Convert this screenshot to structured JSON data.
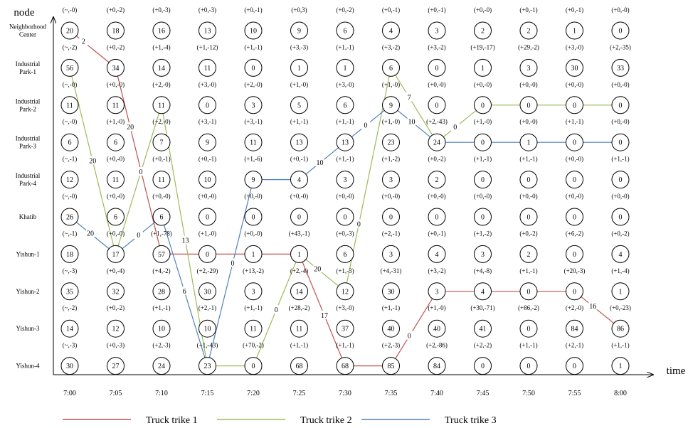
{
  "axis": {
    "y_label": "node",
    "x_label": "time"
  },
  "times": [
    "7:00",
    "7:05",
    "7:10",
    "7:15",
    "7:20",
    "7:25",
    "7:30",
    "7:35",
    "7:40",
    "7:45",
    "7:50",
    "7:55",
    "8:00"
  ],
  "nodes": [
    {
      "label_lines": [
        "Neighborhood",
        "Center"
      ],
      "values": [
        "20",
        "18",
        "16",
        "13",
        "10",
        "9",
        "6",
        "4",
        "3",
        "2",
        "2",
        "1",
        "0"
      ],
      "changes": [
        "(~,-0)",
        "(+0,-2)",
        "(+0,-3)",
        "(+0,-3)",
        "(+0,-1)",
        "(+0,3)",
        "(+0,-2)",
        "(+0,-1)",
        "(+0,-1)",
        "(+0,-0)",
        "(+0,-1)",
        "(+0,-1)",
        "(+0,-0)"
      ]
    },
    {
      "label_lines": [
        "Industrial",
        "Park-1"
      ],
      "values": [
        "56",
        "34",
        "14",
        "11",
        "0",
        "1",
        "1",
        "6",
        "0",
        "1",
        "3",
        "30",
        "33"
      ],
      "changes": [
        "(~,-2)",
        "(+0,-2)",
        "(+1,-4)",
        "(+1,-12)",
        "(+1,-1)",
        "(+3,-3)",
        "(+1,-1)",
        "(+3,-2)",
        "(+3,-2)",
        "(+19,-17)",
        "(+29,-2)",
        "(+3,-0)",
        "(+2,-35)"
      ]
    },
    {
      "label_lines": [
        "Industrial",
        "Park-2"
      ],
      "values": [
        "11",
        "11",
        "11",
        "0",
        "3",
        "5",
        "6",
        "9",
        "0",
        "0",
        "0",
        "0",
        "0"
      ],
      "changes": [
        "(~,-0)",
        "(+0,-0)",
        "(+2,-0)",
        "(+3,-0)",
        "(+2,-0)",
        "(+1,-0)",
        "(+3,-0)",
        "(+1,-0)",
        "(+0,-0)",
        "(+0,-0)",
        "(+0,-0)",
        "(+0,-0)",
        "(+0,-0)"
      ]
    },
    {
      "label_lines": [
        "Industrial",
        "Park-3"
      ],
      "values": [
        "6",
        "6",
        "7",
        "9",
        "11",
        "13",
        "13",
        "23",
        "24",
        "0",
        "1",
        "0",
        "0"
      ],
      "changes": [
        "(~,-0)",
        "(+1,-0)",
        "(+2,-0)",
        "(+3,-1)",
        "(+3,-1)",
        "(+1,-1)",
        "(+1,-1)",
        "(+1,-0)",
        "(+2,-43)",
        "(+1,-0)",
        "(+0,-0)",
        "(+1,-1)",
        "(+0,-0)"
      ]
    },
    {
      "label_lines": [
        "Industrial",
        "Park-4"
      ],
      "values": [
        "12",
        "11",
        "11",
        "10",
        "9",
        "4",
        "3",
        "3",
        "2",
        "0",
        "0",
        "0",
        "0"
      ],
      "changes": [
        "(~,-1)",
        "(+0,-0)",
        "(+0,-1)",
        "(+0,-1)",
        "(+1,-6)",
        "(+0,-1)",
        "(+1,-1)",
        "(+1,-2)",
        "(+0,-2)",
        "(+1,-1)",
        "(+1,-1)",
        "(+0,-0)",
        "(+1,-1)"
      ]
    },
    {
      "label_lines": [
        "Khatib"
      ],
      "values": [
        "26",
        "6",
        "6",
        "0",
        "0",
        "0",
        "0",
        "0",
        "0",
        "0",
        "0",
        "0",
        "0"
      ],
      "changes": [
        "(~,-0)",
        "(+0,-0)",
        "(+0,-0)",
        "(+0,-0)",
        "(+0,-0)",
        "(+0,-0)",
        "(+0,-0)",
        "(+0,-0)",
        "(+0,-0)",
        "(+0,-0)",
        "(+0,-0)",
        "(+0,-0)",
        "(+0,-0)"
      ]
    },
    {
      "label_lines": [
        "Yishun-1"
      ],
      "values": [
        "18",
        "17",
        "57",
        "0",
        "1",
        "1",
        "6",
        "3",
        "4",
        "3",
        "2",
        "0",
        "4"
      ],
      "changes": [
        "(~,-1)",
        "(+0,-0)",
        "(+1,-78)",
        "(+1,-0)",
        "(+0,-0)",
        "(+43,-1)",
        "(+0,-3)",
        "(+2,-1)",
        "(+0,-1)",
        "(+1,-2)",
        "(+0,-2)",
        "(+6,-2)",
        "(+0,-2)"
      ]
    },
    {
      "label_lines": [
        "Yishun-2"
      ],
      "values": [
        "35",
        "32",
        "28",
        "30",
        "3",
        "14",
        "12",
        "30",
        "3",
        "4",
        "0",
        "0",
        "1"
      ],
      "changes": [
        "(~,-3)",
        "(+0,-4)",
        "(+4,-2)",
        "(+2,-29)",
        "(+13,-2)",
        "(+2,-4)",
        "(+1,-3)",
        "(+4,-31)",
        "(+3,-2)",
        "(+4,-8)",
        "(+1,-1)",
        "(+20,-3)",
        "(+1,-4)"
      ]
    },
    {
      "label_lines": [
        "Yishun-3"
      ],
      "values": [
        "14",
        "12",
        "10",
        "10",
        "11",
        "11",
        "37",
        "40",
        "40",
        "41",
        "0",
        "84",
        "86"
      ],
      "changes": [
        "(~,-2)",
        "(+0,-2)",
        "(+1,-1)",
        "(+2,-1)",
        "(+1,-1)",
        "(+28,-2)",
        "(+3,-0)",
        "(+1,-1)",
        "(+1,-0)",
        "(+30,-71)",
        "(+86,-2)",
        "(+2,-0)",
        "(+0,-23)"
      ]
    },
    {
      "label_lines": [
        "Yishun-4"
      ],
      "values": [
        "30",
        "27",
        "24",
        "23",
        "0",
        "68",
        "68",
        "85",
        "84",
        "0",
        "0",
        "0",
        "1"
      ],
      "changes": [
        "(~,-3)",
        "(+0,-3)",
        "(+2,-3)",
        "(+1,-43)",
        "(+70,-2)",
        "(+1,-1)",
        "(+1,-1)",
        "(+2,-3)",
        "(+2,-86)",
        "(+2,-2)",
        "(+1,-1)",
        "(+2,-1)",
        "(+1,-1)"
      ]
    }
  ],
  "routes": [
    {
      "name": "Truck trike 1",
      "color": "#c0504d",
      "points": [
        [
          0,
          0
        ],
        [
          1,
          1
        ],
        [
          2,
          6
        ],
        [
          3,
          6
        ],
        [
          4,
          6
        ],
        [
          5,
          6
        ],
        [
          6,
          9
        ],
        [
          7,
          9
        ],
        [
          8,
          7
        ],
        [
          9,
          7
        ],
        [
          10,
          7
        ],
        [
          11,
          7
        ],
        [
          12,
          8
        ]
      ],
      "labels": [
        {
          "segment": 0,
          "t": 0.3,
          "text": "2"
        },
        {
          "segment": 1,
          "t": 0.32,
          "text": "20"
        },
        {
          "segment": 5,
          "t": 0.55,
          "text": "17"
        },
        {
          "segment": 7,
          "t": 0.4,
          "text": "0"
        },
        {
          "segment": 11,
          "t": 0.4,
          "text": "16"
        }
      ]
    },
    {
      "name": "Truck trike 2",
      "color": "#9bbb59",
      "points": [
        [
          0,
          1
        ],
        [
          1,
          6
        ],
        [
          2,
          2
        ],
        [
          3,
          9
        ],
        [
          4,
          9
        ],
        [
          5,
          6
        ],
        [
          6,
          7
        ],
        [
          7,
          1
        ],
        [
          8,
          3
        ],
        [
          9,
          2
        ],
        [
          10,
          2
        ],
        [
          11,
          2
        ],
        [
          12,
          2
        ]
      ],
      "labels": [
        {
          "segment": 0,
          "t": 0.5,
          "text": "20"
        },
        {
          "segment": 1,
          "t": 0.55,
          "text": "0"
        },
        {
          "segment": 2,
          "t": 0.52,
          "text": "13"
        },
        {
          "segment": 4,
          "t": 0.5,
          "text": "0"
        },
        {
          "segment": 5,
          "t": 0.4,
          "text": "20"
        },
        {
          "segment": 6,
          "t": 0.3,
          "text": "0"
        },
        {
          "segment": 7,
          "t": 0.4,
          "text": "7"
        },
        {
          "segment": 8,
          "t": 0.4,
          "text": "0"
        }
      ]
    },
    {
      "name": "Truck trike 3",
      "color": "#4f81bd",
      "points": [
        [
          0,
          5
        ],
        [
          1,
          6
        ],
        [
          2,
          5
        ],
        [
          3,
          9
        ],
        [
          4,
          4
        ],
        [
          5,
          4
        ],
        [
          6,
          3
        ],
        [
          7,
          2
        ],
        [
          8,
          3
        ],
        [
          9,
          3
        ],
        [
          10,
          3
        ],
        [
          11,
          3
        ],
        [
          12,
          3
        ]
      ],
      "labels": [
        {
          "segment": 0,
          "t": 0.45,
          "text": "20"
        },
        {
          "segment": 1,
          "t": 0.5,
          "text": "0"
        },
        {
          "segment": 2,
          "t": 0.5,
          "text": "6"
        },
        {
          "segment": 3,
          "t": 0.55,
          "text": "0"
        },
        {
          "segment": 5,
          "t": 0.45,
          "text": "10"
        },
        {
          "segment": 6,
          "t": 0.45,
          "text": "0"
        },
        {
          "segment": 7,
          "t": 0.45,
          "text": "10"
        }
      ]
    }
  ],
  "legend": [
    {
      "label": "Truck trike 1",
      "color": "#c0504d"
    },
    {
      "label": "Truck trike 2",
      "color": "#9bbb59"
    },
    {
      "label": "Truck trike 3",
      "color": "#4f81bd"
    }
  ]
}
